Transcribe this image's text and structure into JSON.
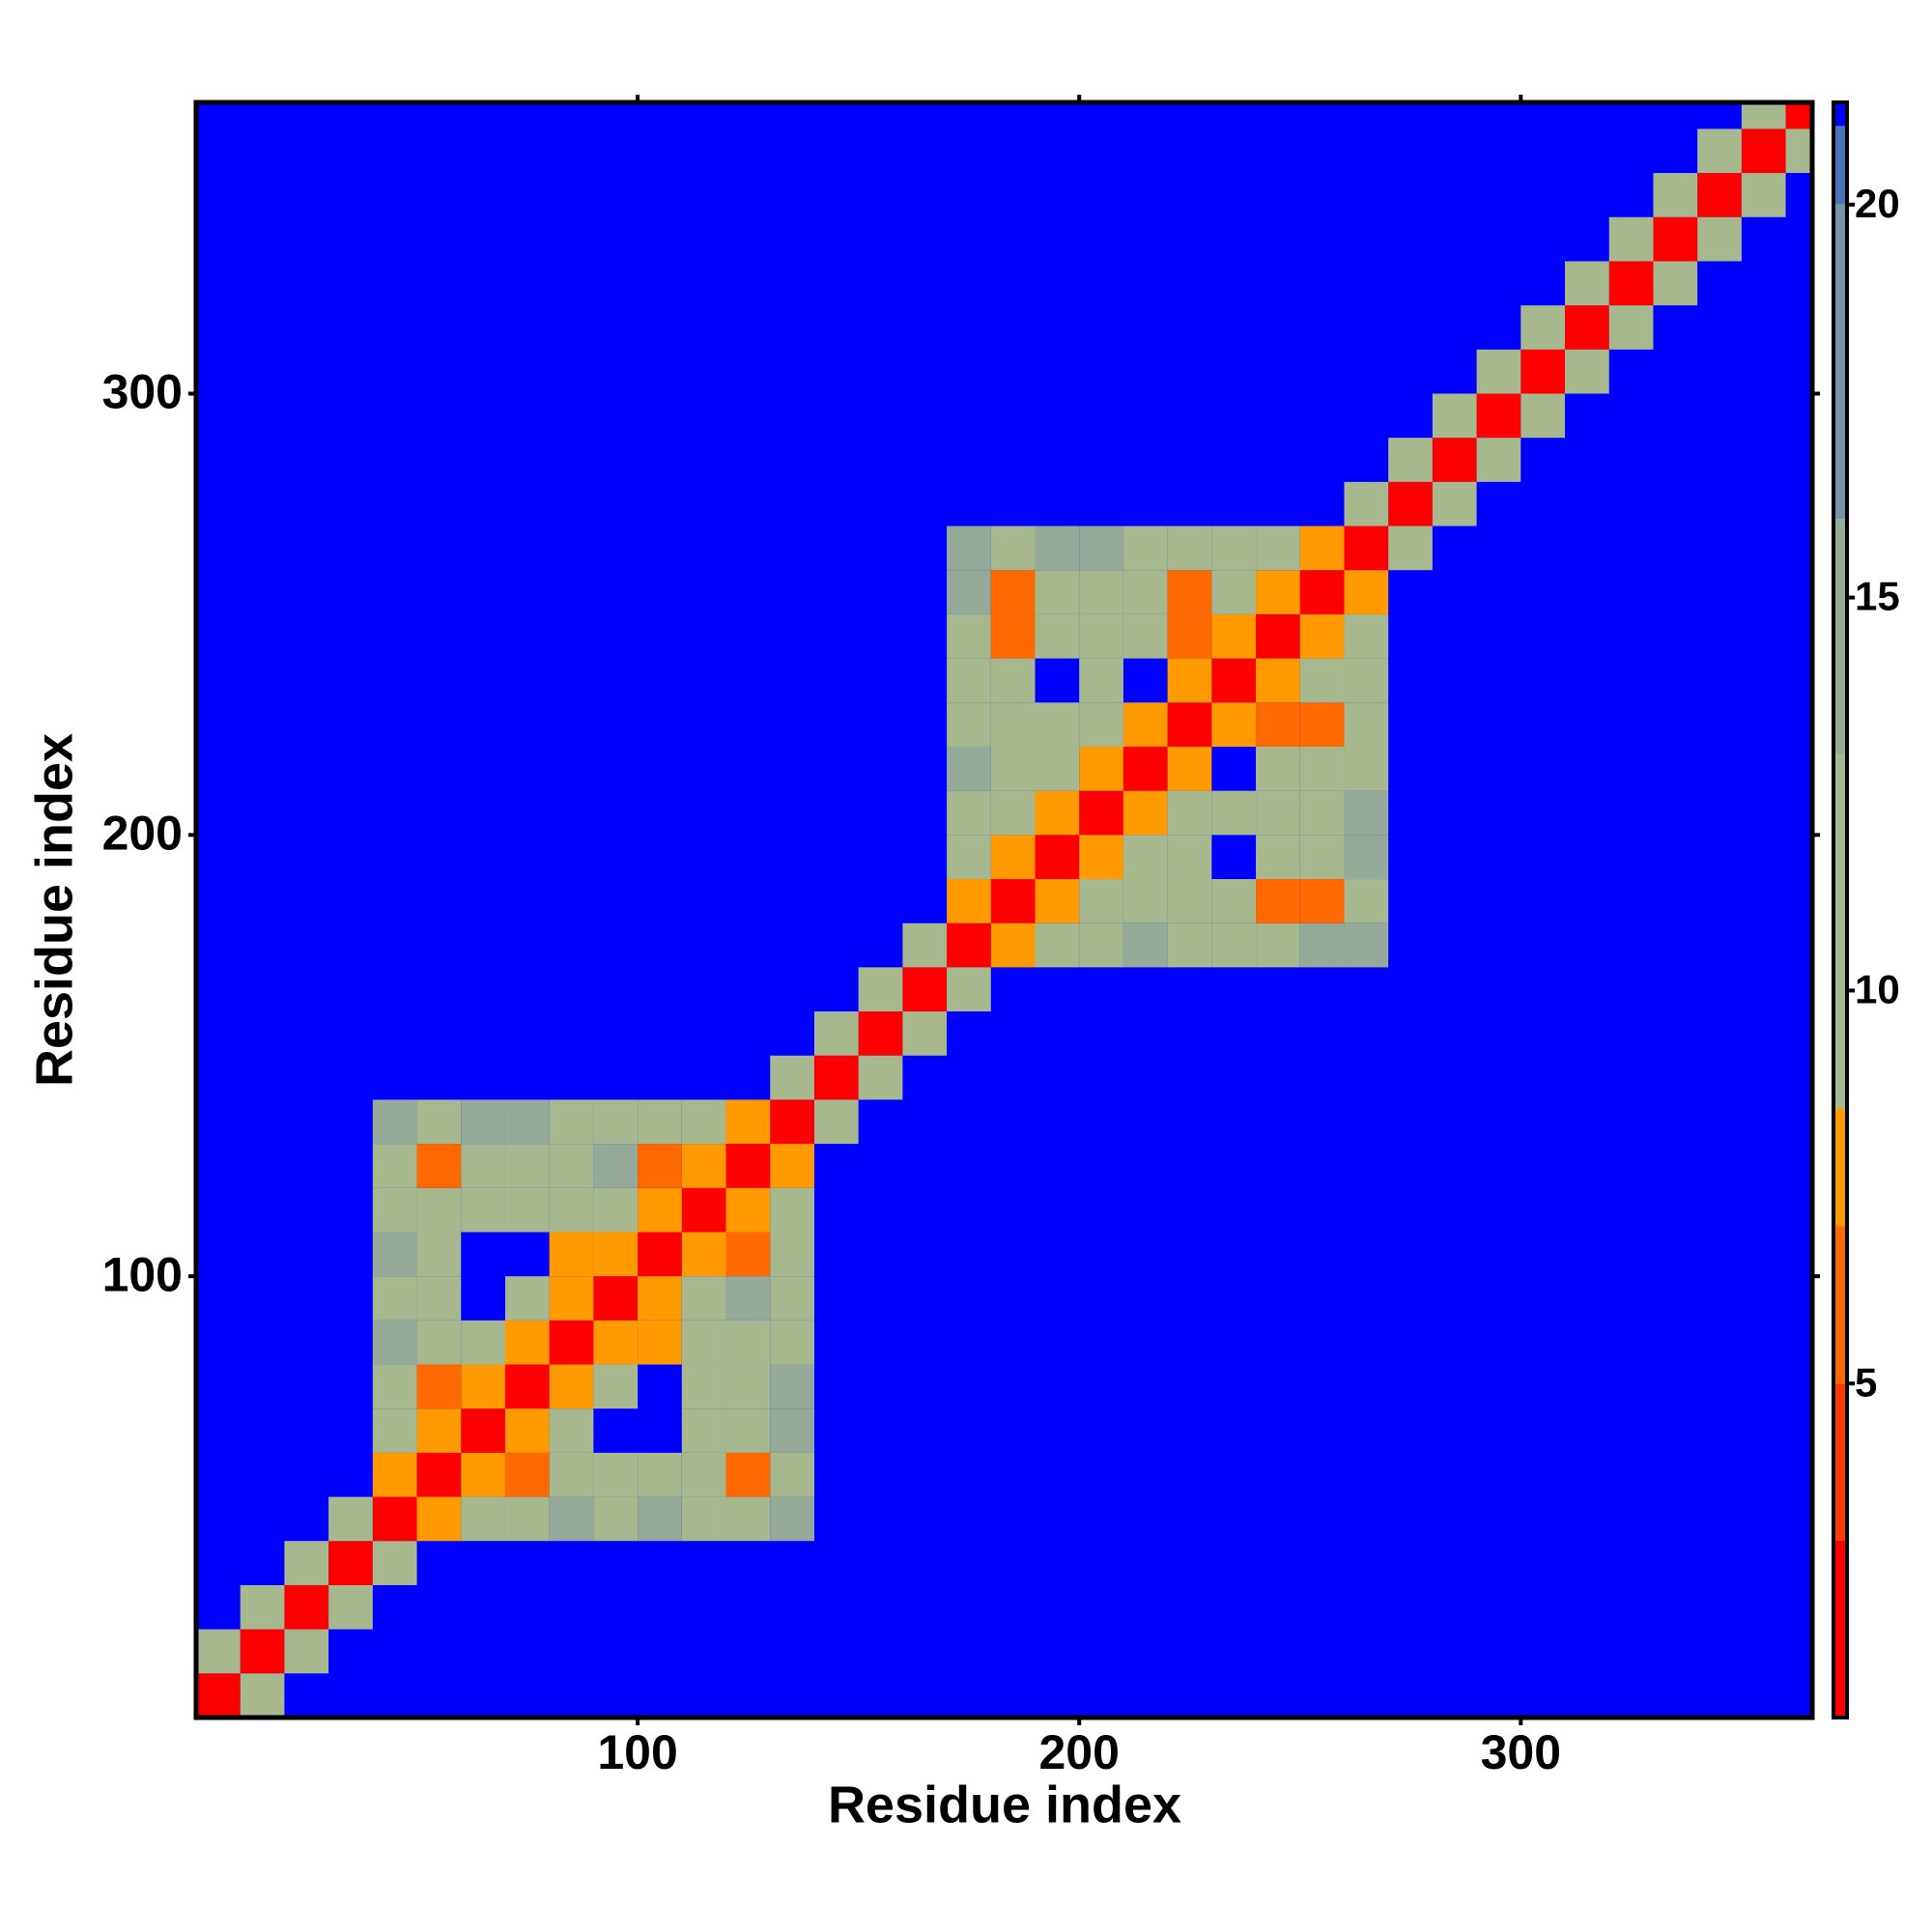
{
  "chart_data": {
    "type": "heatmap",
    "x_label": "Residue index",
    "y_label": "Residue index",
    "xlim": [
      0,
      366
    ],
    "ylim": [
      0,
      366
    ],
    "xticks": [
      100,
      200,
      300
    ],
    "yticks": [
      100,
      200,
      300
    ],
    "symmetric": true,
    "background": "#0000ff",
    "cells": [
      [
        5,
        5,
        2
      ],
      [
        15,
        15,
        2
      ],
      [
        25,
        25,
        2
      ],
      [
        35,
        35,
        2
      ],
      [
        45,
        45,
        2
      ],
      [
        55,
        55,
        2
      ],
      [
        65,
        65,
        2
      ],
      [
        75,
        75,
        2
      ],
      [
        85,
        85,
        2
      ],
      [
        95,
        95,
        2
      ],
      [
        105,
        105,
        2
      ],
      [
        115,
        115,
        2
      ],
      [
        125,
        125,
        2
      ],
      [
        135,
        135,
        2
      ],
      [
        145,
        145,
        2
      ],
      [
        155,
        155,
        2
      ],
      [
        165,
        165,
        2
      ],
      [
        175,
        175,
        2
      ],
      [
        185,
        185,
        2
      ],
      [
        195,
        195,
        2
      ],
      [
        205,
        205,
        2
      ],
      [
        215,
        215,
        2
      ],
      [
        225,
        225,
        2
      ],
      [
        235,
        235,
        2
      ],
      [
        245,
        245,
        2
      ],
      [
        255,
        255,
        2
      ],
      [
        265,
        265,
        2
      ],
      [
        275,
        275,
        2
      ],
      [
        285,
        285,
        2
      ],
      [
        295,
        295,
        2
      ],
      [
        305,
        305,
        2
      ],
      [
        315,
        315,
        2
      ],
      [
        325,
        325,
        2
      ],
      [
        335,
        335,
        2
      ],
      [
        345,
        345,
        2
      ],
      [
        355,
        355,
        2
      ],
      [
        365,
        365,
        2
      ],
      [
        5,
        15,
        9
      ],
      [
        15,
        25,
        9
      ],
      [
        25,
        35,
        9
      ],
      [
        35,
        45,
        9
      ],
      [
        45,
        55,
        7
      ],
      [
        55,
        65,
        7
      ],
      [
        65,
        75,
        7
      ],
      [
        75,
        85,
        7
      ],
      [
        85,
        95,
        7
      ],
      [
        95,
        105,
        7
      ],
      [
        105,
        115,
        7
      ],
      [
        115,
        125,
        7
      ],
      [
        125,
        135,
        7
      ],
      [
        135,
        145,
        9
      ],
      [
        145,
        155,
        9
      ],
      [
        155,
        165,
        9
      ],
      [
        165,
        175,
        9
      ],
      [
        175,
        185,
        7
      ],
      [
        185,
        195,
        7
      ],
      [
        195,
        205,
        7
      ],
      [
        205,
        215,
        7
      ],
      [
        215,
        225,
        7
      ],
      [
        225,
        235,
        7
      ],
      [
        235,
        245,
        7
      ],
      [
        245,
        255,
        7
      ],
      [
        255,
        265,
        7
      ],
      [
        265,
        275,
        9
      ],
      [
        275,
        285,
        9
      ],
      [
        285,
        295,
        9
      ],
      [
        295,
        305,
        9
      ],
      [
        305,
        315,
        9
      ],
      [
        315,
        325,
        9
      ],
      [
        325,
        335,
        9
      ],
      [
        335,
        345,
        9
      ],
      [
        345,
        355,
        9
      ],
      [
        355,
        365,
        9
      ],
      [
        45,
        65,
        12
      ],
      [
        45,
        75,
        12
      ],
      [
        45,
        85,
        14
      ],
      [
        45,
        95,
        12
      ],
      [
        45,
        105,
        14
      ],
      [
        45,
        115,
        12
      ],
      [
        45,
        125,
        12
      ],
      [
        45,
        135,
        14
      ],
      [
        55,
        75,
        6
      ],
      [
        55,
        85,
        12
      ],
      [
        55,
        95,
        12
      ],
      [
        55,
        105,
        12
      ],
      [
        55,
        115,
        12
      ],
      [
        55,
        125,
        6
      ],
      [
        55,
        135,
        12
      ],
      [
        65,
        85,
        12
      ],
      [
        65,
        115,
        12
      ],
      [
        65,
        125,
        12
      ],
      [
        65,
        135,
        14
      ],
      [
        75,
        95,
        12
      ],
      [
        75,
        115,
        12
      ],
      [
        75,
        125,
        12
      ],
      [
        75,
        135,
        14
      ],
      [
        85,
        105,
        8
      ],
      [
        85,
        115,
        12
      ],
      [
        85,
        125,
        12
      ],
      [
        85,
        135,
        12
      ],
      [
        95,
        115,
        12
      ],
      [
        95,
        125,
        14
      ],
      [
        95,
        135,
        12
      ],
      [
        105,
        125,
        6
      ],
      [
        105,
        135,
        12
      ],
      [
        115,
        135,
        12
      ],
      [
        175,
        195,
        12
      ],
      [
        175,
        205,
        12
      ],
      [
        175,
        215,
        14
      ],
      [
        175,
        225,
        12
      ],
      [
        175,
        235,
        12
      ],
      [
        175,
        245,
        12
      ],
      [
        175,
        255,
        14
      ],
      [
        175,
        265,
        14
      ],
      [
        185,
        205,
        12
      ],
      [
        185,
        215,
        12
      ],
      [
        185,
        225,
        12
      ],
      [
        185,
        235,
        12
      ],
      [
        185,
        245,
        6
      ],
      [
        185,
        255,
        6
      ],
      [
        185,
        265,
        12
      ],
      [
        195,
        215,
        12
      ],
      [
        195,
        225,
        12
      ],
      [
        195,
        245,
        12
      ],
      [
        195,
        255,
        12
      ],
      [
        195,
        265,
        14
      ],
      [
        205,
        225,
        12
      ],
      [
        205,
        235,
        12
      ],
      [
        205,
        245,
        12
      ],
      [
        205,
        255,
        12
      ],
      [
        205,
        265,
        14
      ],
      [
        215,
        245,
        12
      ],
      [
        215,
        255,
        12
      ],
      [
        215,
        265,
        12
      ],
      [
        225,
        245,
        6
      ],
      [
        225,
        255,
        6
      ],
      [
        225,
        265,
        12
      ],
      [
        235,
        255,
        12
      ],
      [
        235,
        265,
        12
      ],
      [
        245,
        265,
        12
      ]
    ],
    "colorbar": {
      "lim": [
        0.75,
        21.3
      ],
      "ticks": [
        5,
        10,
        15,
        20
      ],
      "stops": [
        {
          "value": 0.75,
          "color": "#ff0000"
        },
        {
          "value": 3,
          "color": "#ff3a00"
        },
        {
          "value": 5,
          "color": "#ff6a00"
        },
        {
          "value": 7,
          "color": "#ff9a00"
        },
        {
          "value": 8.5,
          "color": "#a8b88e"
        },
        {
          "value": 13,
          "color": "#96aa9a"
        },
        {
          "value": 16,
          "color": "#7a92a6"
        },
        {
          "value": 20,
          "color": "#4a72b8"
        },
        {
          "value": 21,
          "color": "#0000ff"
        }
      ]
    }
  }
}
